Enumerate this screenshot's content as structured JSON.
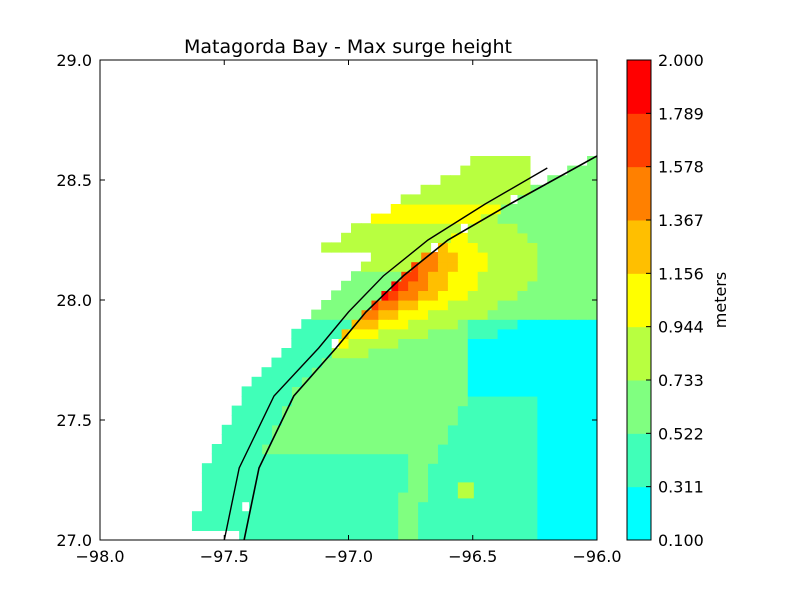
{
  "chart_data": {
    "type": "heatmap",
    "title": "Matagorda Bay - Max surge height",
    "xlim": [
      -98.0,
      -96.0
    ],
    "ylim": [
      27.0,
      29.0
    ],
    "x_ticks": [
      -98.0,
      -97.5,
      -97.0,
      -96.5,
      -96.0
    ],
    "x_tick_labels": [
      "−98.0",
      "−97.5",
      "−97.0",
      "−96.5",
      "−96.0"
    ],
    "y_ticks": [
      27.0,
      27.5,
      28.0,
      28.5,
      29.0
    ],
    "y_tick_labels": [
      "27.0",
      "27.5",
      "28.0",
      "28.5",
      "29.0"
    ],
    "colorbar": {
      "label": "meters",
      "tick_labels": [
        "0.100",
        "0.311",
        "0.522",
        "0.733",
        "0.944",
        "1.156",
        "1.367",
        "1.578",
        "1.789",
        "2.000"
      ],
      "levels": [
        0.1,
        0.311,
        0.522,
        0.733,
        0.944,
        1.156,
        1.367,
        1.578,
        1.789,
        2.0
      ],
      "colors": [
        "#00ffff",
        "#40ffb8",
        "#80ff80",
        "#b8ff40",
        "#ffff00",
        "#ffbf00",
        "#ff8000",
        "#ff4000",
        "#ff0000"
      ]
    },
    "field_model": {
      "description": "max surge ridge along barrier coast, decaying offshore",
      "peak_value": 1.85,
      "peak_lon": -96.8,
      "peak_lat": 28.05
    }
  }
}
